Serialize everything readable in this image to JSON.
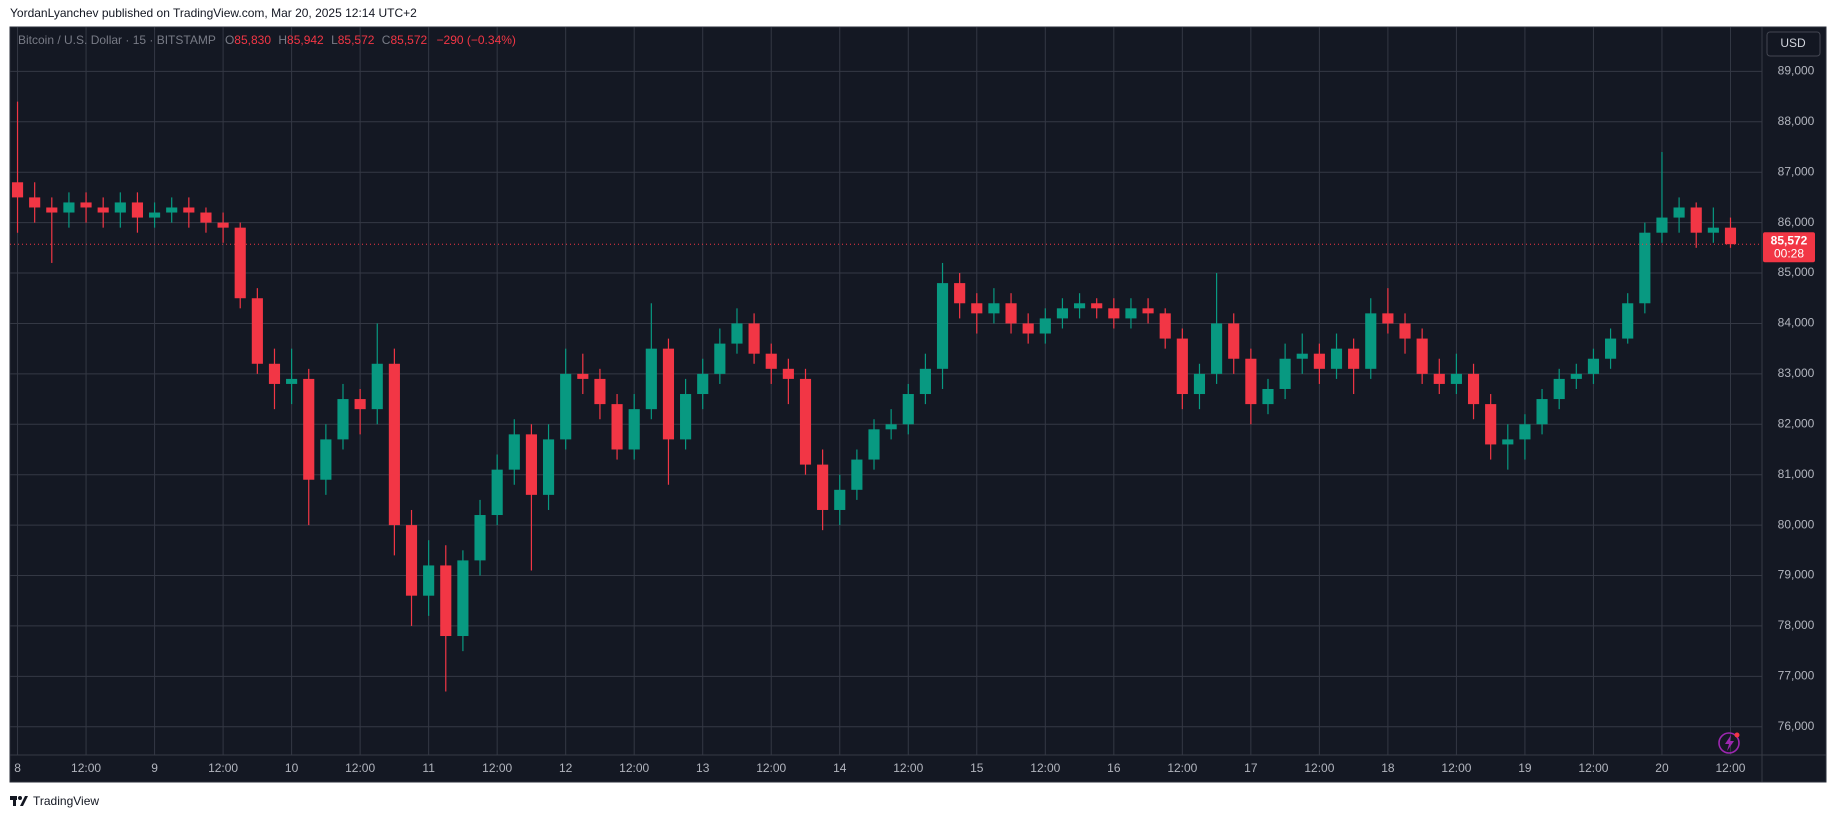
{
  "header": "YordanLyanchev published on TradingView.com, Mar 20, 2025 12:14 UTC+2",
  "brand": "TradingView",
  "chart_data": {
    "type": "candlestick",
    "symbol": "Bitcoin / U.S. Dollar · 15 · BITSTAMP",
    "legend": {
      "open_label": "O",
      "open": "85,830",
      "high_label": "H",
      "high": "85,942",
      "low_label": "L",
      "low": "85,572",
      "close_label": "C",
      "close": "85,572",
      "change": "−290 (−0.34%)"
    },
    "currency": "USD",
    "last_price": {
      "value": 85572,
      "label": "85,572"
    },
    "countdown": "00:28",
    "up_color": "#089981",
    "down_color": "#f23645",
    "grid": true,
    "xlim": [
      7.945,
      20.73
    ],
    "ylim": [
      75440,
      89880
    ],
    "xticks": [
      8,
      {
        "value": 8.5,
        "label": "12:00"
      },
      9,
      {
        "value": 9.5,
        "label": "12:00"
      },
      10,
      {
        "value": 10.5,
        "label": "12:00"
      },
      11,
      {
        "value": 11.5,
        "label": "12:00"
      },
      12,
      {
        "value": 12.5,
        "label": "12:00"
      },
      13,
      {
        "value": 13.5,
        "label": "12:00"
      },
      14,
      {
        "value": 14.5,
        "label": "12:00"
      },
      15,
      {
        "value": 15.5,
        "label": "12:00"
      },
      16,
      {
        "value": 16.5,
        "label": "12:00"
      },
      17,
      {
        "value": 17.5,
        "label": "12:00"
      },
      18,
      {
        "value": 18.5,
        "label": "12:00"
      },
      19,
      {
        "value": 19.5,
        "label": "12:00"
      },
      20,
      {
        "value": 20.5,
        "label": "12:00"
      }
    ],
    "yticks": [
      {
        "value": 76000,
        "label": "76,000"
      },
      {
        "value": 77000,
        "label": "77,000"
      },
      {
        "value": 78000,
        "label": "78,000"
      },
      {
        "value": 79000,
        "label": "79,000"
      },
      {
        "value": 80000,
        "label": "80,000"
      },
      {
        "value": 81000,
        "label": "81,000"
      },
      {
        "value": 82000,
        "label": "82,000"
      },
      {
        "value": 83000,
        "label": "83,000"
      },
      {
        "value": 84000,
        "label": "84,000"
      },
      {
        "value": 85000,
        "label": "85,000"
      },
      {
        "value": 86000,
        "label": "86,000"
      },
      {
        "value": 87000,
        "label": "87,000"
      },
      {
        "value": 88000,
        "label": "88,000"
      },
      {
        "value": 89000,
        "label": "89,000"
      }
    ],
    "x": [
      8,
      8.125,
      8.25,
      8.375,
      8.5,
      8.625,
      8.75,
      8.875,
      9,
      9.125,
      9.25,
      9.375,
      9.5,
      9.625,
      9.75,
      9.875,
      10,
      10.125,
      10.25,
      10.375,
      10.5,
      10.625,
      10.75,
      10.875,
      11,
      11.125,
      11.25,
      11.375,
      11.5,
      11.625,
      11.75,
      11.875,
      12,
      12.125,
      12.25,
      12.375,
      12.5,
      12.625,
      12.75,
      12.875,
      13,
      13.125,
      13.25,
      13.375,
      13.5,
      13.625,
      13.75,
      13.875,
      14,
      14.125,
      14.25,
      14.375,
      14.5,
      14.625,
      14.75,
      14.875,
      15,
      15.125,
      15.25,
      15.375,
      15.5,
      15.625,
      15.75,
      15.875,
      16,
      16.125,
      16.25,
      16.375,
      16.5,
      16.625,
      16.75,
      16.875,
      17,
      17.125,
      17.25,
      17.375,
      17.5,
      17.625,
      17.75,
      17.875,
      18,
      18.125,
      18.25,
      18.375,
      18.5,
      18.625,
      18.75,
      18.875,
      19,
      19.125,
      19.25,
      19.375,
      19.5,
      19.625,
      19.75,
      19.875,
      20,
      20.125,
      20.25,
      20.375,
      20.5
    ],
    "open": [
      86800,
      86500,
      86300,
      86200,
      86400,
      86300,
      86200,
      86400,
      86100,
      86200,
      86300,
      86200,
      86000,
      85900,
      84500,
      83200,
      82800,
      82900,
      80900,
      81700,
      82500,
      82300,
      83200,
      80000,
      78600,
      79200,
      77800,
      79300,
      80200,
      81100,
      81800,
      80600,
      81700,
      83000,
      82900,
      82400,
      81500,
      82300,
      83500,
      81700,
      82600,
      83000,
      83600,
      84000,
      83400,
      83100,
      82900,
      81200,
      80300,
      80700,
      81300,
      81900,
      82000,
      82600,
      83100,
      84800,
      84400,
      84200,
      84400,
      84000,
      83800,
      84100,
      84300,
      84400,
      84300,
      84100,
      84300,
      84200,
      83700,
      82600,
      83000,
      84000,
      83300,
      82400,
      82700,
      83300,
      83400,
      83100,
      83500,
      83100,
      84200,
      84000,
      83700,
      83000,
      82800,
      83000,
      82400,
      81600,
      81700,
      82000,
      82500,
      82900,
      83000,
      83300,
      83700,
      84400,
      85800,
      86100,
      86300,
      85800,
      85900
    ],
    "high": [
      88400,
      86800,
      86500,
      86600,
      86600,
      86500,
      86600,
      86600,
      86400,
      86500,
      86500,
      86300,
      86200,
      86000,
      84700,
      83500,
      83500,
      83100,
      82000,
      82800,
      82700,
      84000,
      83500,
      80300,
      79700,
      79600,
      79500,
      80500,
      81400,
      82100,
      82000,
      82000,
      83500,
      83400,
      83100,
      82600,
      82600,
      84400,
      83700,
      82900,
      83300,
      83900,
      84300,
      84200,
      83600,
      83300,
      83100,
      81500,
      81000,
      81500,
      82100,
      82300,
      82800,
      83400,
      85200,
      85000,
      84600,
      84700,
      84600,
      84200,
      84300,
      84500,
      84600,
      84500,
      84500,
      84500,
      84500,
      84300,
      83900,
      83200,
      85000,
      84200,
      83500,
      82900,
      83600,
      83800,
      83600,
      83800,
      83700,
      84500,
      84700,
      84200,
      83900,
      83300,
      83400,
      83200,
      82600,
      82000,
      82200,
      82700,
      83100,
      83200,
      83500,
      83900,
      84600,
      86000,
      87400,
      86500,
      86400,
      86300,
      86100
    ],
    "low": [
      85800,
      86000,
      85200,
      85900,
      86000,
      85900,
      85900,
      85800,
      85900,
      86000,
      85900,
      85800,
      85600,
      84300,
      83000,
      82300,
      82400,
      80000,
      80600,
      81500,
      81800,
      82000,
      79400,
      78000,
      78200,
      76700,
      77500,
      79000,
      80000,
      80800,
      79100,
      80300,
      81500,
      82600,
      82100,
      81300,
      81300,
      82100,
      80800,
      81500,
      82300,
      82800,
      83400,
      83200,
      82800,
      82400,
      81000,
      79900,
      80000,
      80500,
      81100,
      81700,
      81800,
      82400,
      82700,
      84100,
      83800,
      84000,
      83800,
      83600,
      83600,
      83900,
      84100,
      84100,
      83900,
      83900,
      84000,
      83500,
      82300,
      82300,
      82800,
      83000,
      82000,
      82200,
      82500,
      83000,
      82800,
      82900,
      82600,
      82900,
      83800,
      83400,
      82800,
      82600,
      82600,
      82100,
      81300,
      81100,
      81300,
      81800,
      82300,
      82700,
      82800,
      83100,
      83600,
      84200,
      85600,
      85800,
      85500,
      85600,
      85500
    ],
    "close": [
      86500,
      86300,
      86200,
      86400,
      86300,
      86200,
      86400,
      86100,
      86200,
      86300,
      86200,
      86000,
      85900,
      84500,
      83200,
      82800,
      82900,
      80900,
      81700,
      82500,
      82300,
      83200,
      80000,
      78600,
      79200,
      77800,
      79300,
      80200,
      81100,
      81800,
      80600,
      81700,
      83000,
      82900,
      82400,
      81500,
      82300,
      83500,
      81700,
      82600,
      83000,
      83600,
      84000,
      83400,
      83100,
      82900,
      81200,
      80300,
      80700,
      81300,
      81900,
      82000,
      82600,
      83100,
      84800,
      84400,
      84200,
      84400,
      84000,
      83800,
      84100,
      84300,
      84400,
      84300,
      84100,
      84300,
      84200,
      83700,
      82600,
      83000,
      84000,
      83300,
      82400,
      82700,
      83300,
      83400,
      83100,
      83500,
      83100,
      84200,
      84000,
      83700,
      83000,
      82800,
      83000,
      82400,
      81600,
      81700,
      82000,
      82500,
      82900,
      83000,
      83300,
      83700,
      84400,
      85800,
      86100,
      86300,
      85800,
      85900,
      85572
    ]
  }
}
